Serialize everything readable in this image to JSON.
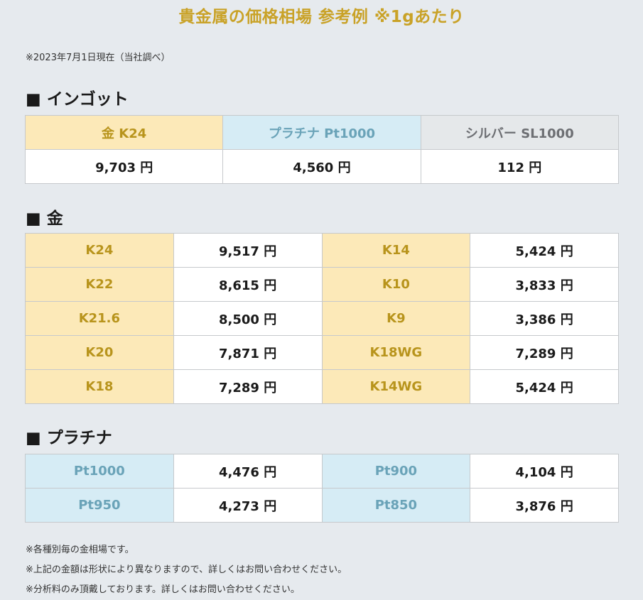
{
  "title": "貴金属の価格相場 参考例 ※1gあたり",
  "as_of": "※2023年7月1日現在（当社調べ）",
  "ingot": {
    "heading": "■ インゴット",
    "headers": [
      "金 K24",
      "プラチナ Pt1000",
      "シルバー SL1000"
    ],
    "prices": [
      "9,703 円",
      "4,560 円",
      "112 円"
    ]
  },
  "gold": {
    "heading": "■ 金",
    "rows": [
      {
        "g1": "K24",
        "p1": "9,517 円",
        "g2": "K14",
        "p2": "5,424 円"
      },
      {
        "g1": "K22",
        "p1": "8,615 円",
        "g2": "K10",
        "p2": "3,833 円"
      },
      {
        "g1": "K21.6",
        "p1": "8,500 円",
        "g2": "K9",
        "p2": "3,386 円"
      },
      {
        "g1": "K20",
        "p1": "7,871 円",
        "g2": "K18WG",
        "p2": "7,289 円"
      },
      {
        "g1": "K18",
        "p1": "7,289 円",
        "g2": "K14WG",
        "p2": "5,424 円"
      }
    ]
  },
  "platinum": {
    "heading": "■ プラチナ",
    "rows": [
      {
        "g1": "Pt1000",
        "p1": "4,476 円",
        "g2": "Pt900",
        "p2": "4,104 円"
      },
      {
        "g1": "Pt950",
        "p1": "4,273 円",
        "g2": "Pt850",
        "p2": "3,876 円"
      }
    ]
  },
  "notes": [
    "※各種別毎の金相場です。",
    "※上記の金額は形状により異なりますので、詳しくはお問い合わせください。",
    "※分析料のみ頂戴しております。詳しくはお問い合わせください。"
  ],
  "colors": {
    "gold_label": "#fce9b8",
    "gold_text": "#b8941c",
    "platinum_label": "#d6ecf5",
    "platinum_text": "#6aa3b8",
    "silver_label": "#e5e8ea",
    "background": "#e6eaee"
  }
}
